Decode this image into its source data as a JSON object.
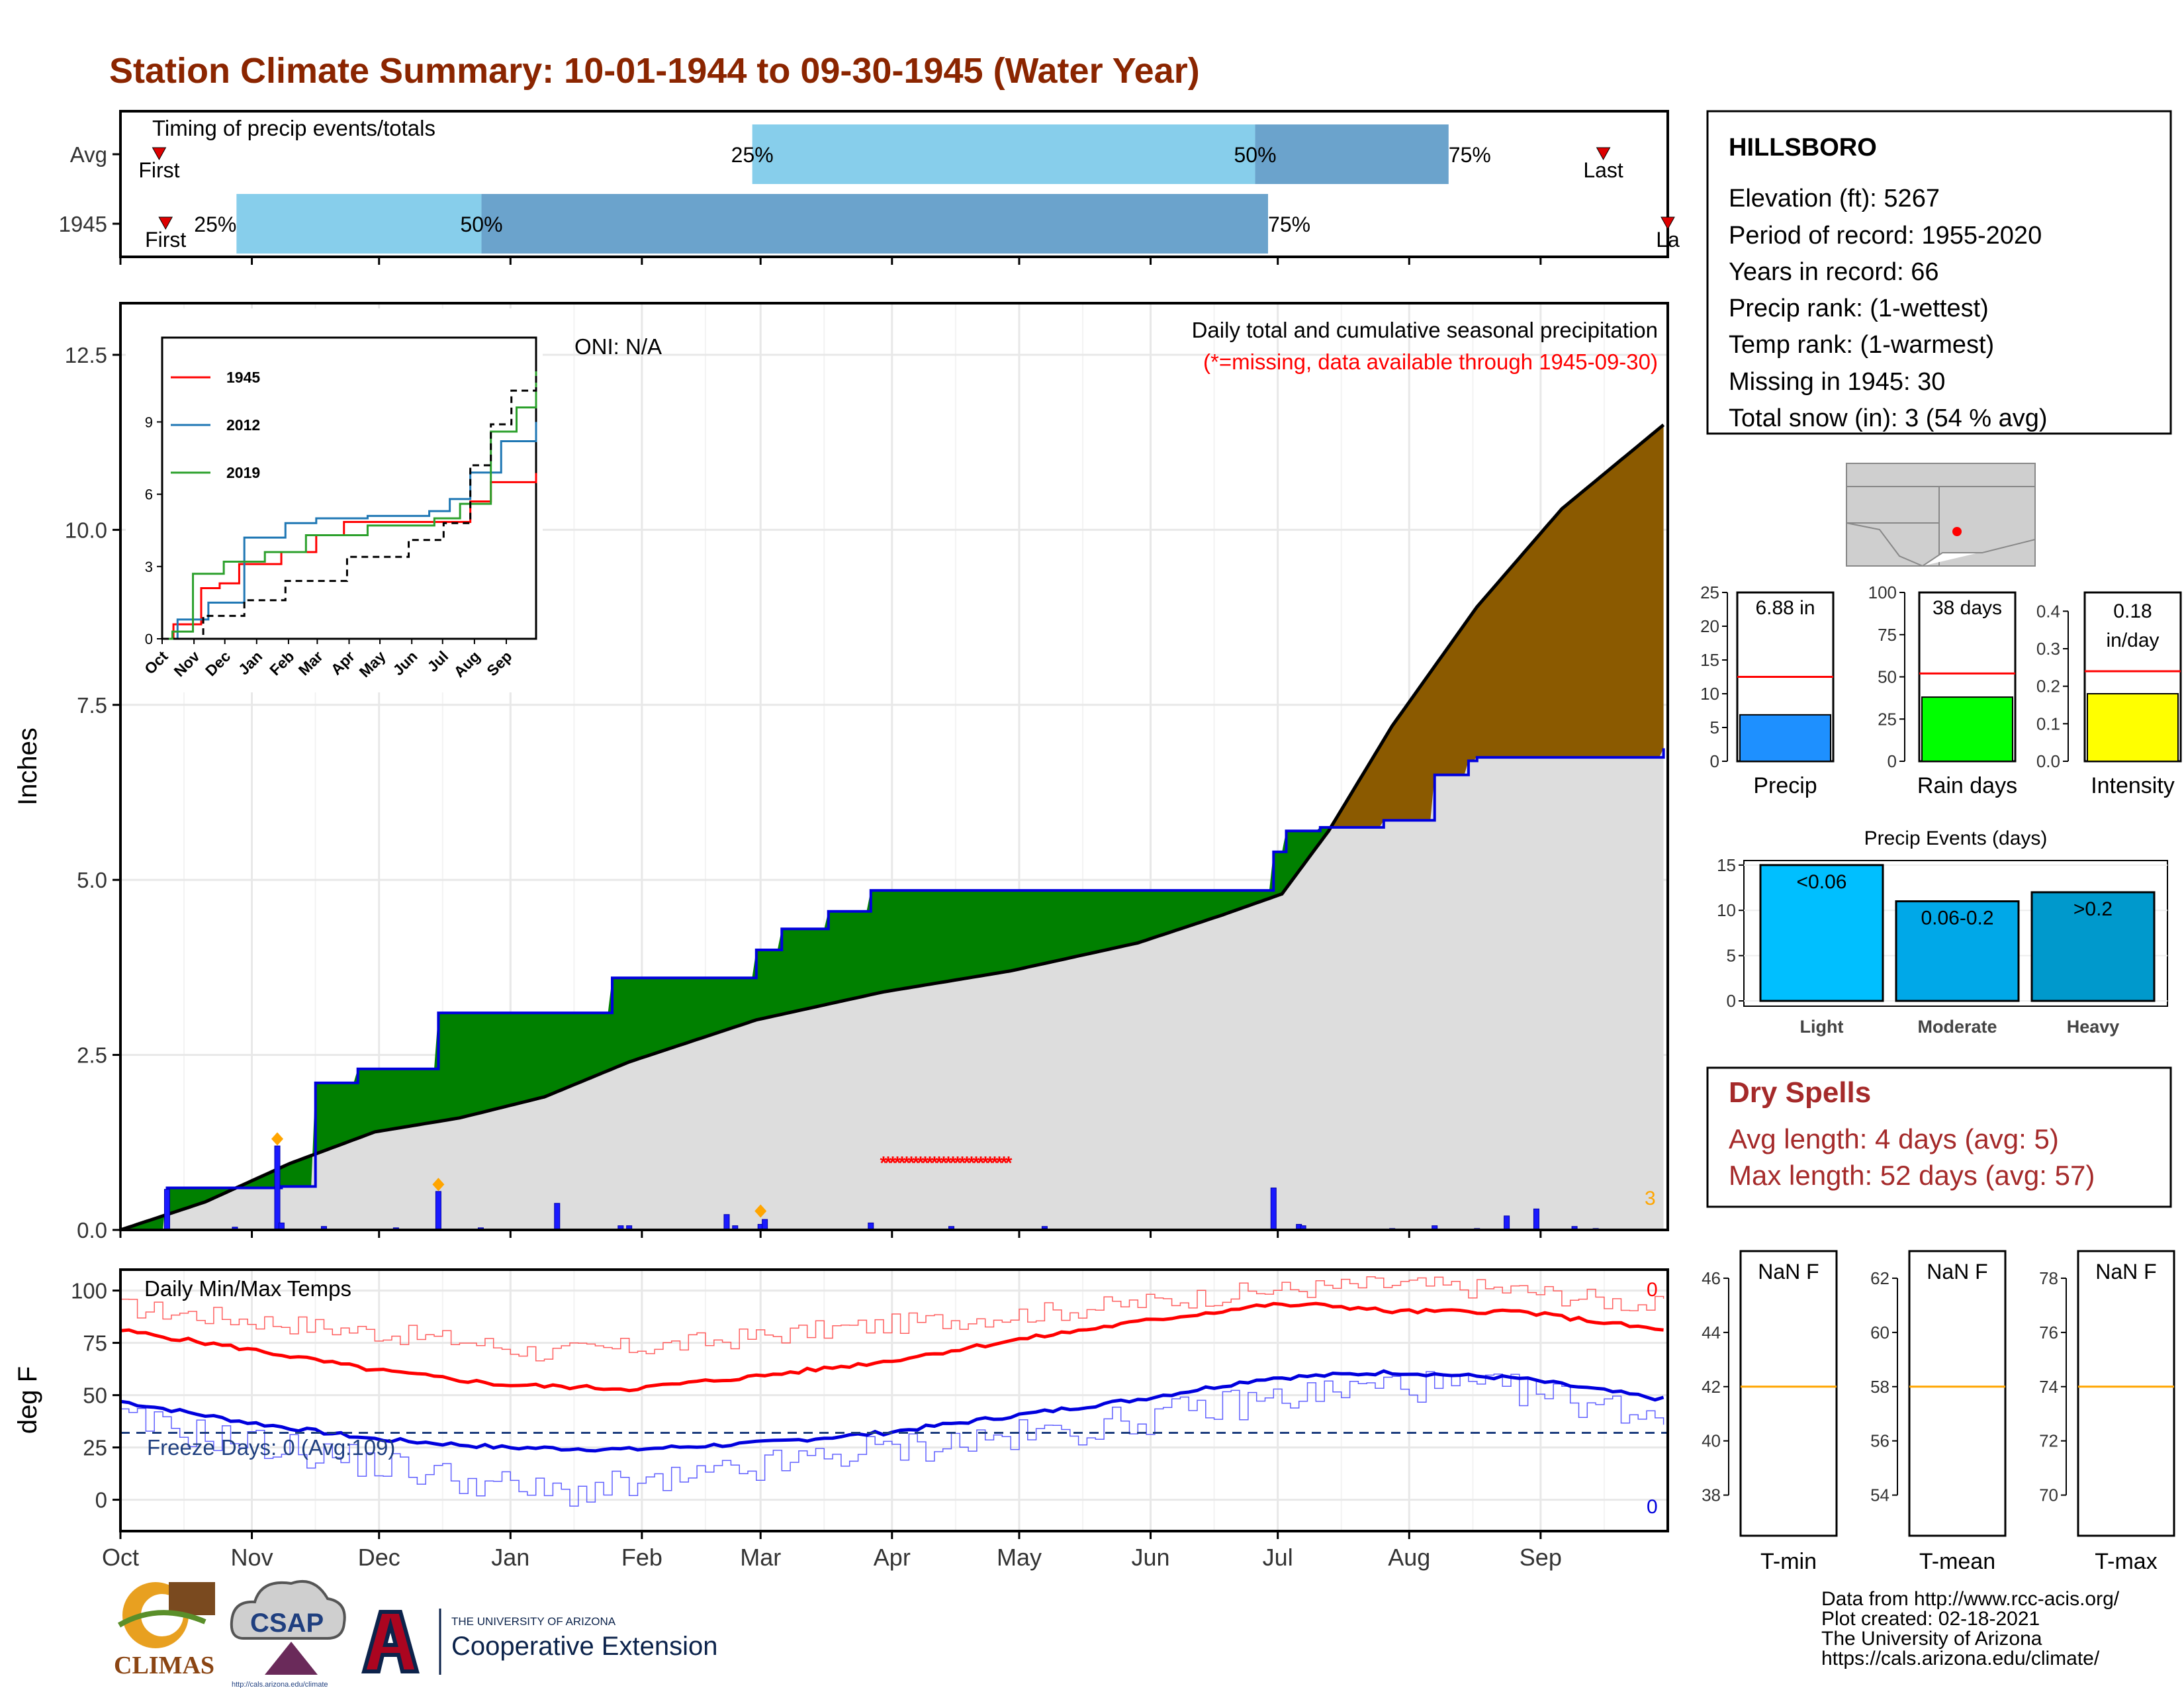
{
  "title": "Station Climate Summary: 10-01-1944 to 09-30-1945 (Water Year)",
  "colors": {
    "title": "#8B2500",
    "avg_cum_fill": "#dddddd",
    "deficit": "#008000",
    "surplus": "#8B5A00",
    "cum_line": "#0000dd",
    "light_blue": "#87CEEB",
    "mid_blue": "#6BA3CC",
    "dry_spell": "#ff0000",
    "temp_max": "#ff0000",
    "temp_min": "#0000dd",
    "freeze": "#1f3f7f"
  },
  "timing": {
    "title": "Timing of precip events/totals",
    "rows": [
      {
        "label": "Avg",
        "first_label": "First",
        "last_label": "Last",
        "p25_label": "25%",
        "p50_label": "50%",
        "p75_label": "75%",
        "first": 0.3,
        "p25": 4.9,
        "p50": 8.8,
        "p75": 10.3,
        "last": 11.5
      },
      {
        "label": "1945",
        "first_label": "First",
        "last_label": "La",
        "p25_label": "25%",
        "p50_label": "50%",
        "p75_label": "75%",
        "first": 0.35,
        "p25": 0.9,
        "p50": 2.8,
        "p75": 8.9,
        "last": 12.0
      }
    ]
  },
  "main": {
    "ylabel": "Inches",
    "oni": "ONI: N/A",
    "caption": "Daily total and cumulative seasonal precipitation",
    "missing_note": "(*=missing, data available through 1945-09-30)",
    "snow_total_label": "3",
    "yticks": [
      "0.0",
      "2.5",
      "5.0",
      "7.5",
      "10.0",
      "12.5"
    ],
    "months": [
      "Oct",
      "Nov",
      "Dec",
      "Jan",
      "Feb",
      "Mar",
      "Apr",
      "May",
      "Jun",
      "Jul",
      "Aug",
      "Sep"
    ]
  },
  "chart_data": [
    {
      "type": "area",
      "name": "cumulative-precip",
      "ylim": [
        0,
        12.5
      ],
      "avg_cumulative": {
        "day": [
          0,
          20,
          40,
          60,
          80,
          100,
          120,
          150,
          180,
          210,
          240,
          260,
          274,
          285,
          300,
          320,
          340,
          364
        ],
        "inches": [
          0.0,
          0.4,
          0.95,
          1.4,
          1.6,
          1.9,
          2.4,
          3.0,
          3.4,
          3.7,
          4.1,
          4.5,
          4.8,
          5.7,
          7.2,
          8.9,
          10.3,
          11.5
        ]
      },
      "cumulative_1945": {
        "day": [
          0,
          11,
          27,
          38,
          46,
          56,
          75,
          85,
          96,
          106,
          116,
          127,
          141,
          150,
          156,
          167,
          177,
          177,
          195,
          265,
          272,
          275,
          283,
          298,
          310,
          318,
          320,
          364
        ],
        "inches": [
          0.0,
          0.6,
          0.6,
          0.62,
          2.1,
          2.3,
          3.1,
          3.1,
          3.1,
          3.1,
          3.6,
          3.6,
          3.6,
          4.0,
          4.3,
          4.55,
          4.55,
          4.85,
          4.85,
          4.85,
          5.4,
          5.7,
          5.75,
          5.85,
          6.5,
          6.7,
          6.75,
          6.88
        ]
      },
      "daily_bars": {
        "day": [
          11,
          27,
          37,
          38,
          48,
          65,
          75,
          85,
          103,
          118,
          120,
          143,
          145,
          151,
          152,
          177,
          196,
          218,
          218,
          272,
          278,
          279,
          300,
          300,
          310,
          320,
          327,
          334,
          343,
          348
        ],
        "inches": [
          0.58,
          0.04,
          1.2,
          0.1,
          0.05,
          0.03,
          0.55,
          0.03,
          0.38,
          0.06,
          0.06,
          0.22,
          0.06,
          0.08,
          0.15,
          0.1,
          0.05,
          0.05,
          0.02,
          0.6,
          0.08,
          0.06,
          0.02,
          0.01,
          0.06,
          0.02,
          0.2,
          0.3,
          0.05,
          0.02
        ]
      },
      "snow_markers": {
        "day": [
          37,
          75,
          151
        ],
        "inches": [
          1.3,
          0.65,
          0.27
        ]
      },
      "dry_spell_days": [
        180,
        210
      ]
    },
    {
      "type": "line",
      "name": "inset-cumulative",
      "series": [
        {
          "name": "1945",
          "color": "#ff0000",
          "x": [
            0,
            11,
            38,
            56,
            75,
            116,
            150,
            177,
            272,
            300,
            320,
            364
          ],
          "values": [
            0,
            0.6,
            2.1,
            2.3,
            3.1,
            3.6,
            4.3,
            4.85,
            4.85,
            5.7,
            6.5,
            6.88
          ]
        },
        {
          "name": "2012",
          "color": "#1f77b4",
          "x": [
            0,
            15,
            45,
            80,
            120,
            150,
            200,
            260,
            280,
            300,
            330,
            364
          ],
          "values": [
            0,
            0.8,
            1.5,
            4.2,
            4.8,
            5.0,
            5.1,
            5.3,
            5.8,
            6.9,
            8.2,
            9.0
          ]
        },
        {
          "name": "2019",
          "color": "#2ca02c",
          "x": [
            0,
            10,
            30,
            60,
            100,
            140,
            200,
            265,
            290,
            320,
            345,
            364
          ],
          "values": [
            0,
            0.3,
            2.7,
            3.2,
            3.6,
            4.3,
            4.7,
            5.0,
            5.6,
            8.6,
            9.6,
            11.3
          ]
        },
        {
          "name": "avg",
          "color": "#000000",
          "x": [
            0,
            40,
            80,
            120,
            180,
            240,
            274,
            300,
            320,
            340,
            364
          ],
          "values": [
            0,
            0.95,
            1.6,
            2.4,
            3.4,
            4.1,
            4.8,
            7.2,
            8.9,
            10.3,
            12.2
          ]
        }
      ],
      "yticks": [
        "0",
        "3",
        "6",
        "9"
      ],
      "ylim": [
        0,
        12.5
      ]
    },
    {
      "type": "bar",
      "name": "precip-total",
      "categories": [
        "Precip"
      ],
      "values": [
        6.88
      ],
      "avg": 12.5,
      "ylim": [
        0,
        25
      ],
      "label": "6.88 in",
      "color": "#1E90FF",
      "yticks": [
        "0",
        "5",
        "10",
        "15",
        "20",
        "25"
      ]
    },
    {
      "type": "bar",
      "name": "rain-days",
      "categories": [
        "Rain days"
      ],
      "values": [
        38
      ],
      "avg": 52,
      "ylim": [
        0,
        100
      ],
      "label": "38 days",
      "color": "#00ff00",
      "yticks": [
        "0",
        "25",
        "50",
        "75",
        "100"
      ]
    },
    {
      "type": "bar",
      "name": "intensity",
      "categories": [
        "Intensity"
      ],
      "values": [
        0.18
      ],
      "avg": 0.24,
      "ylim": [
        0,
        0.45
      ],
      "label_top": "0.18",
      "label_bottom": "in/day",
      "color": "#ffff00",
      "yticks": [
        "0.0",
        "0.1",
        "0.2",
        "0.3",
        "0.4"
      ]
    },
    {
      "type": "bar",
      "name": "precip-events",
      "title": "Precip Events (days)",
      "categories": [
        "Light",
        "Moderate",
        "Heavy"
      ],
      "labels": [
        "<0.06",
        "0.06-0.2",
        ">0.2"
      ],
      "values": [
        15,
        11,
        12
      ],
      "colors": [
        "#00BFFF",
        "#00A8E8",
        "#0099CC"
      ],
      "ylim": [
        0,
        15.5
      ],
      "yticks": [
        "0",
        "5",
        "10",
        "15"
      ]
    },
    {
      "type": "line",
      "name": "temperatures",
      "title": "Daily Min/Max Temps",
      "ylabel": "deg F",
      "ylim": [
        -15,
        110
      ],
      "yticks": [
        "0",
        "25",
        "50",
        "75",
        "100"
      ],
      "avg_max": {
        "day": [
          0,
          30,
          60,
          90,
          120,
          150,
          180,
          210,
          240,
          270,
          285,
          300,
          330,
          364
        ],
        "values": [
          81,
          72,
          62,
          55,
          53,
          59,
          66,
          76,
          85,
          93,
          93,
          90,
          90,
          81
        ]
      },
      "avg_min": {
        "day": [
          0,
          30,
          60,
          90,
          120,
          150,
          180,
          210,
          240,
          270,
          300,
          330,
          364
        ],
        "values": [
          47,
          37,
          29,
          25,
          24,
          27,
          32,
          40,
          48,
          58,
          61,
          58,
          48
        ]
      },
      "obs_max_approx": {
        "day": [
          0,
          40,
          80,
          100,
          130,
          170,
          220,
          270,
          300,
          330,
          364
        ],
        "values": [
          92,
          84,
          76,
          70,
          74,
          82,
          90,
          100,
          103,
          100,
          92
        ]
      },
      "obs_min_approx": {
        "day": [
          0,
          40,
          80,
          100,
          130,
          170,
          220,
          270,
          300,
          330,
          364
        ],
        "values": [
          38,
          24,
          10,
          3,
          8,
          22,
          32,
          48,
          55,
          52,
          40
        ]
      },
      "freeze_line": 32,
      "freeze_label": "Freeze Days: 0 (Avg:109)",
      "max_count_label": "0",
      "min_count_label": "0"
    },
    {
      "type": "bar",
      "name": "temp-summaries",
      "panels": [
        {
          "category": "T-min",
          "label": "NaN F",
          "avg": 42,
          "ylim": [
            36.5,
            47
          ],
          "yticks": [
            "38",
            "40",
            "42",
            "44",
            "46"
          ],
          "ytick_values": [
            38,
            40,
            42,
            44,
            46
          ]
        },
        {
          "category": "T-mean",
          "label": "NaN F",
          "avg": 58,
          "ylim": [
            52.5,
            63
          ],
          "yticks": [
            "54",
            "56",
            "58",
            "60",
            "62"
          ],
          "ytick_values": [
            54,
            56,
            58,
            60,
            62
          ]
        },
        {
          "category": "T-max",
          "label": "NaN F",
          "avg": 74,
          "ylim": [
            68.5,
            79
          ],
          "yticks": [
            "70",
            "72",
            "74",
            "76",
            "78"
          ],
          "ytick_values": [
            70,
            72,
            74,
            76,
            78
          ]
        }
      ]
    }
  ],
  "station": {
    "name": "HILLSBORO",
    "lines": [
      "Elevation (ft): 5267",
      "Period of record: 1955-2020",
      "Years in record: 66",
      "Precip rank:  (1-wettest)",
      "Temp rank:  (1-warmest)",
      "Missing in 1945: 30",
      "Total snow (in): 3 (54 % avg)"
    ]
  },
  "dry_spells": {
    "title": "Dry Spells",
    "avg_length": "Avg length: 4 days (avg: 5)",
    "max_length": "Max length: 52 days (avg: 57)"
  },
  "footer": {
    "lines": [
      "Data from http://www.rcc-acis.org/",
      "Plot created: 02-18-2021",
      "The University of Arizona",
      "https://cals.arizona.edu/climate/"
    ]
  },
  "logos": {
    "climas": "CLIMAS",
    "csap": "CSAP",
    "csap_url": "http://cals.arizona.edu/climate",
    "ua_line1": "THE UNIVERSITY OF ARIZONA",
    "ua_line2": "Cooperative Extension"
  }
}
